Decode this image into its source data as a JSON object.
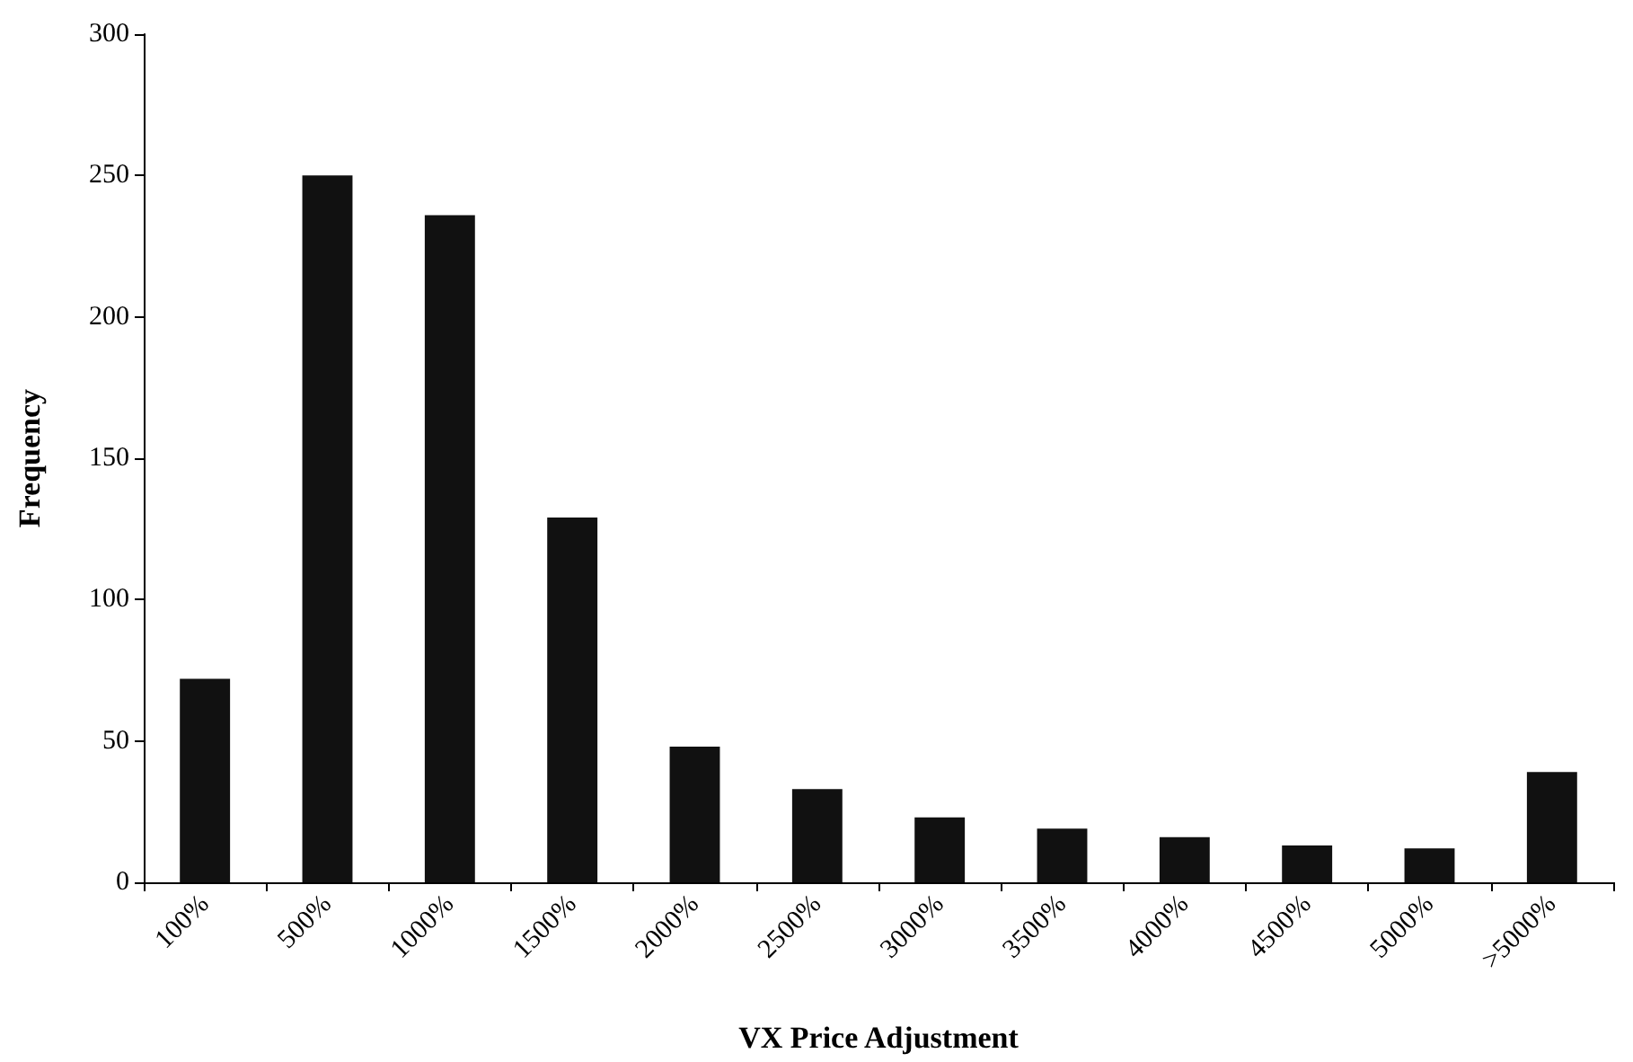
{
  "chart_data": {
    "type": "bar",
    "xlabel": "VX Price Adjustment",
    "ylabel": "Frequency",
    "categories": [
      "100%",
      "500%",
      "1000%",
      "1500%",
      "2000%",
      "2500%",
      "3000%",
      "3500%",
      "4000%",
      "4500%",
      "5000%",
      ">5000%"
    ],
    "values": [
      72,
      250,
      236,
      129,
      48,
      33,
      23,
      19,
      16,
      13,
      12,
      39
    ],
    "color": "#111111",
    "ylim": [
      0,
      300
    ],
    "yticks": [
      0,
      50,
      100,
      150,
      200,
      250,
      300
    ],
    "grid": false
  }
}
